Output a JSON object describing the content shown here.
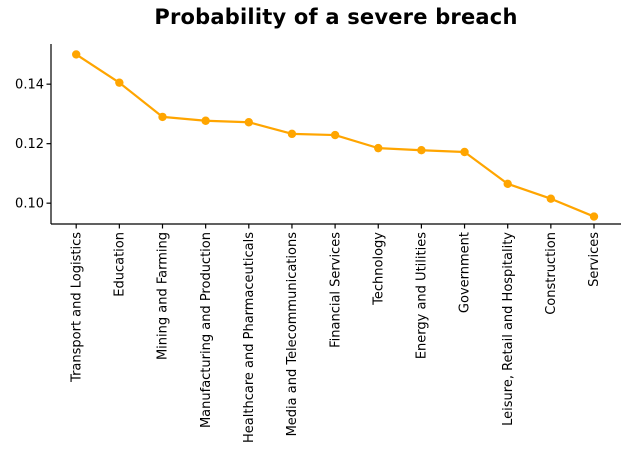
{
  "chart_data": {
    "type": "line",
    "title": "Probability of a severe breach",
    "categories": [
      "Transport and Logistics",
      "Education",
      "Mining and Farming",
      "Manufacturing and Production",
      "Healthcare and Pharmaceuticals",
      "Media and Telecommunications",
      "Financial Services",
      "Technology",
      "Energy and Utilities",
      "Government",
      "Leisure, Retail and Hospitality",
      "Construction",
      "Services"
    ],
    "values": [
      0.15,
      0.1405,
      0.129,
      0.1277,
      0.1272,
      0.1233,
      0.1229,
      0.1185,
      0.1178,
      0.1172,
      0.1065,
      0.1015,
      0.0955
    ],
    "xlabel": "",
    "ylabel": "",
    "yticks": [
      0.1,
      0.12,
      0.14
    ],
    "ytick_labels": [
      "0.10",
      "0.12",
      "0.14"
    ],
    "ylim": [
      0.093,
      0.1535
    ],
    "grid": false,
    "legend": false,
    "x_tick_rotation_deg": 90,
    "line_color": "#FFA500",
    "marker": "circle",
    "axis_color": "#000000",
    "text_color": "#000000",
    "background_color": "#FFFFFF"
  }
}
